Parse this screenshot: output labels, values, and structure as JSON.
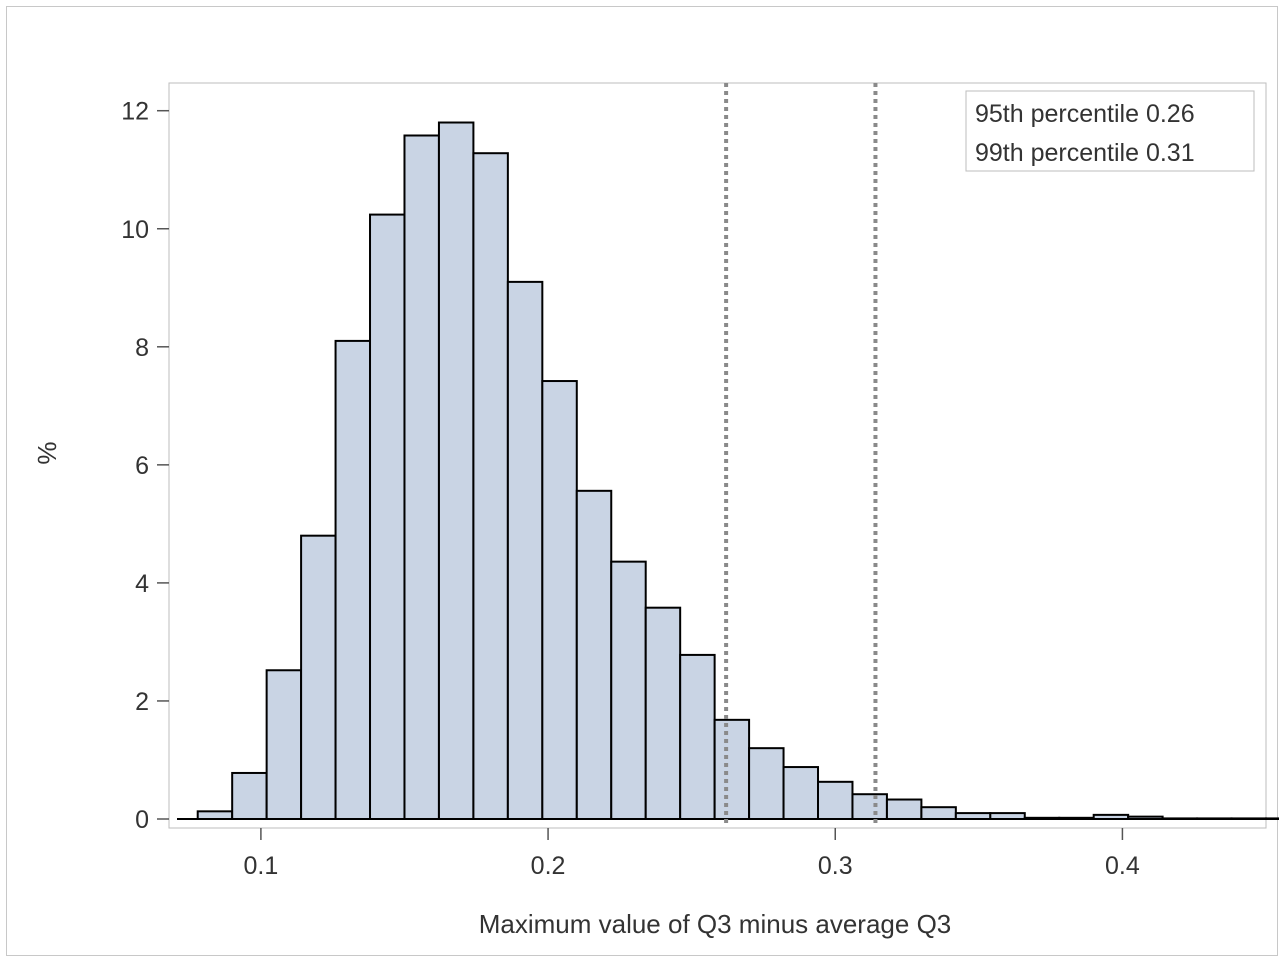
{
  "chart_data": {
    "type": "bar",
    "title": "",
    "xlabel": "Maximum value of Q3 minus average Q3",
    "ylabel": "%",
    "xlim": [
      0.068,
      0.45
    ],
    "ylim": [
      0,
      12.3
    ],
    "x_ticks": [
      0.1,
      0.2,
      0.3,
      0.4
    ],
    "x_tick_labels": [
      "0.1",
      "0.2",
      "0.3",
      "0.4"
    ],
    "y_ticks": [
      0,
      2,
      4,
      6,
      8,
      10,
      12
    ],
    "y_tick_labels": [
      "0",
      "2",
      "4",
      "6",
      "8",
      "10",
      "12"
    ],
    "bin_width": 0.012,
    "bin_start": 0.078,
    "values": [
      0.13,
      0.78,
      2.52,
      4.8,
      8.1,
      10.24,
      11.58,
      11.8,
      11.28,
      9.1,
      7.42,
      5.56,
      4.36,
      3.58,
      2.78,
      1.68,
      1.2,
      0.88,
      0.63,
      0.42,
      0.33,
      0.2,
      0.1,
      0.1,
      0.02,
      0.02,
      0.07,
      0.04,
      0.01,
      0.01,
      0.01,
      0.01
    ],
    "reference_lines": [
      {
        "x": 0.262,
        "style": "dotted"
      },
      {
        "x": 0.314,
        "style": "dotted"
      }
    ],
    "legend": {
      "placement": "top-right",
      "entries": [
        "95th percentile 0.26",
        "99th percentile 0.31"
      ]
    },
    "grid": false,
    "bar_color": "#c9d4e4",
    "bar_edge_color": "#000000",
    "ref_line_color": "#8a8a8a"
  }
}
